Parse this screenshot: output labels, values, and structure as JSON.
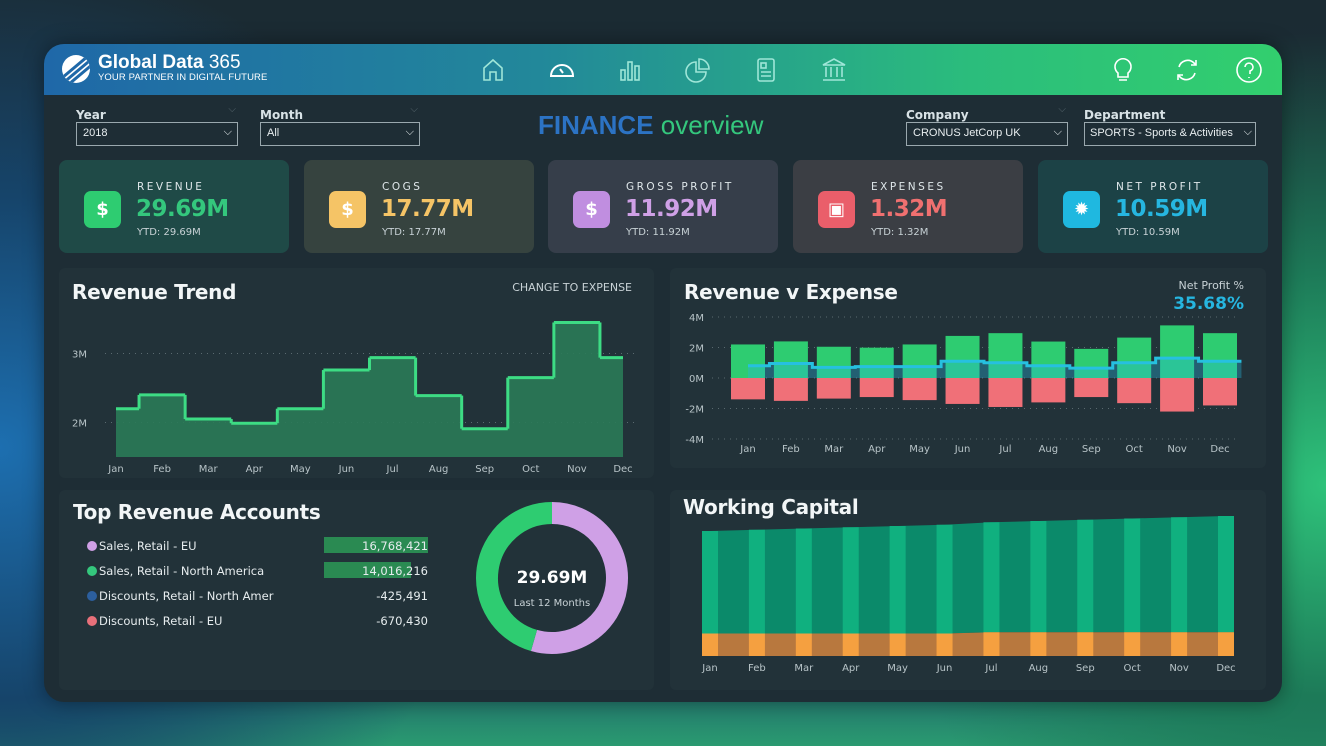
{
  "header": {
    "brand": "Global Data",
    "brand_suffix": "365",
    "tagline": "YOUR PARTNER IN DIGITAL FUTURE",
    "nav_icons": [
      "home-icon",
      "dashboard-gauge-icon",
      "bar-chart-icon",
      "pie-chart-icon",
      "report-icon",
      "bank-icon"
    ],
    "active_nav": "dashboard-gauge-icon",
    "util_icons": [
      "lightbulb-icon",
      "refresh-icon",
      "help-icon"
    ]
  },
  "filters": {
    "year": {
      "label": "Year",
      "value": "2018"
    },
    "month": {
      "label": "Month",
      "value": "All"
    },
    "company": {
      "label": "Company",
      "value": "CRONUS JetCorp UK"
    },
    "department": {
      "label": "Department",
      "value": "SPORTS - Sports & Activities"
    }
  },
  "page_title": {
    "part1": "FINANCE",
    "part2": "overview"
  },
  "kpis": [
    {
      "label": "REVENUE",
      "value": "29.69M",
      "ytd": "YTD: 29.69M",
      "color": "#34c77d",
      "icon": "money-bag-icon"
    },
    {
      "label": "COGS",
      "value": "17.77M",
      "ytd": "YTD: 17.77M",
      "color": "#f5c466",
      "icon": "price-tag-icon"
    },
    {
      "label": "GROSS PROFIT",
      "value": "11.92M",
      "ytd": "YTD: 11.92M",
      "color": "#cfa0e6",
      "icon": "house-dollar-icon"
    },
    {
      "label": "EXPENSES",
      "value": "1.32M",
      "ytd": "YTD: 1.32M",
      "color": "#f07070",
      "icon": "wallet-icon"
    },
    {
      "label": "NET PROFIT",
      "value": "10.59M",
      "ytd": "YTD: 10.59M",
      "color": "#26b6e0",
      "icon": "dollar-badge-icon"
    }
  ],
  "revenue_trend": {
    "title": "Revenue Trend",
    "action": "CHANGE TO EXPENSE"
  },
  "revenue_expense": {
    "title": "Revenue v Expense",
    "np_label": "Net Profit %",
    "np_value": "35.68%"
  },
  "accounts": {
    "title": "Top Revenue Accounts",
    "donut_value": "29.69M",
    "donut_caption": "Last 12 Months",
    "rows": [
      {
        "name": "Sales, Retail - EU",
        "value": "16,768,421",
        "color": "#cfa0e6"
      },
      {
        "name": "Sales, Retail - North America",
        "value": "14,016,216",
        "color": "#34c77d"
      },
      {
        "name": "Discounts, Retail - North Amer",
        "value": "-425,491",
        "color": "#2c5f9e"
      },
      {
        "name": "Discounts, Retail - EU",
        "value": "-670,430",
        "color": "#e8707a"
      }
    ]
  },
  "working_capital": {
    "title": "Working Capital"
  },
  "chart_data": [
    {
      "type": "line",
      "style": "step-area",
      "categories": [
        "Jan",
        "Feb",
        "Mar",
        "Apr",
        "May",
        "Jun",
        "Jul",
        "Aug",
        "Sep",
        "Oct",
        "Nov",
        "Dec"
      ],
      "values": [
        2.2,
        2.4,
        2.05,
        1.99,
        2.2,
        2.76,
        2.94,
        2.39,
        1.91,
        2.65,
        3.45,
        2.94
      ],
      "unit": "M",
      "yticks": [
        "2M",
        "3M"
      ],
      "ylim": [
        1.5,
        3.6
      ],
      "grid": true,
      "color": "#34c77d"
    },
    {
      "type": "bar",
      "categories": [
        "Jan",
        "Feb",
        "Mar",
        "Apr",
        "May",
        "Jun",
        "Jul",
        "Aug",
        "Sep",
        "Oct",
        "Nov",
        "Dec"
      ],
      "series": [
        {
          "values": [
            2.2,
            2.4,
            2.05,
            1.99,
            2.2,
            2.76,
            2.94,
            2.39,
            1.91,
            2.65,
            3.45,
            2.94
          ],
          "color": "#2ecc71"
        },
        {
          "values": [
            -1.4,
            -1.5,
            -1.35,
            -1.25,
            -1.45,
            -1.7,
            -1.9,
            -1.6,
            -1.25,
            -1.65,
            -2.2,
            -1.8
          ],
          "color": "#f07078"
        },
        {
          "type": "line",
          "values": [
            0.8,
            0.95,
            0.7,
            0.75,
            0.75,
            1.1,
            1.0,
            0.8,
            0.65,
            1.0,
            1.3,
            1.1
          ],
          "color": "#26b6e0"
        }
      ],
      "yticks": [
        "4M",
        "2M",
        "0M",
        "-2M",
        "-4M"
      ],
      "ylim": [
        -4,
        4
      ],
      "grid": true
    },
    {
      "type": "pie",
      "style": "donut",
      "slices": [
        {
          "name": "Sales, Retail - EU",
          "value": 16768421,
          "color": "#cfa0e6"
        },
        {
          "name": "Sales, Retail - North America",
          "value": 14016216,
          "color": "#2ecc71"
        }
      ]
    },
    {
      "type": "area",
      "categories": [
        "Jan",
        "Feb",
        "Mar",
        "Apr",
        "May",
        "Jun",
        "Jul",
        "Aug",
        "Sep",
        "Oct",
        "Nov",
        "Dec"
      ],
      "series": [
        {
          "values": [
            18,
            18,
            18,
            18,
            18,
            18,
            19,
            19,
            19,
            19,
            19,
            19
          ],
          "color": "#f0a040"
        },
        {
          "values": [
            82,
            83,
            84,
            85,
            86,
            87,
            88,
            89,
            90,
            91,
            92,
            93
          ],
          "color": "#0fa77c"
        }
      ],
      "grid": false
    }
  ]
}
